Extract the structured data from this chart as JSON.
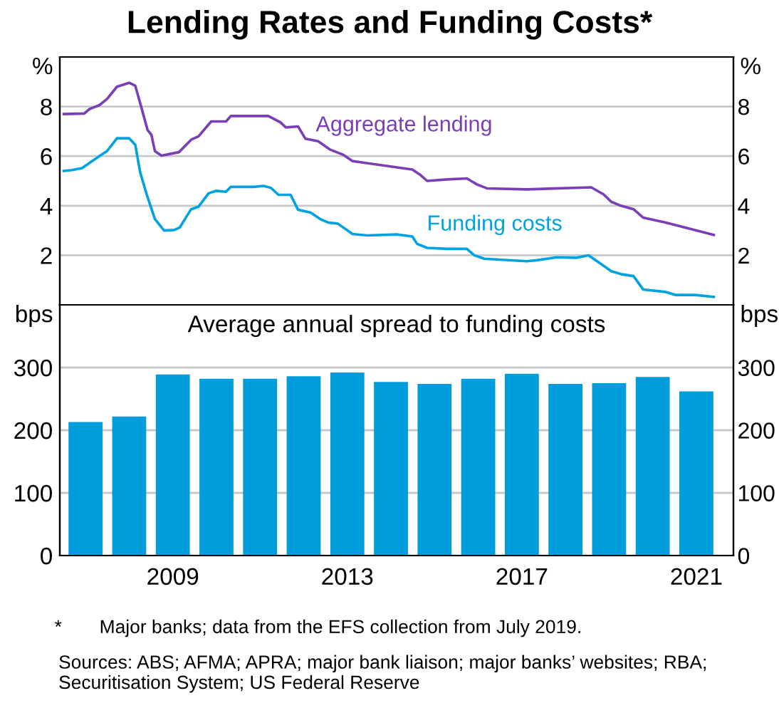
{
  "chart_data": [
    {
      "type": "line",
      "title": "Lending Rates and Funding Costs*",
      "ylabel": "%",
      "y2label": "%",
      "xlim": [
        2006.41,
        2021.85
      ],
      "ylim": [
        0,
        10
      ],
      "yticks": [
        2,
        4,
        6,
        8
      ],
      "y2lim": [
        0,
        10
      ],
      "y2ticks": [
        2,
        4,
        6,
        8
      ],
      "grid": "y",
      "legend": false,
      "tick_labels": "y",
      "marker": "none",
      "line_style": "solid",
      "series": [
        {
          "name": "Aggregate lending",
          "color": "#7b3fb5",
          "x": [
            2006.5,
            2006.97,
            2007.09,
            2007.32,
            2007.49,
            2007.72,
            2008.0,
            2008.14,
            2008.28,
            2008.42,
            2008.51,
            2008.59,
            2008.74,
            2009.14,
            2009.42,
            2009.59,
            2009.88,
            2010.22,
            2010.33,
            2011.19,
            2011.47,
            2011.59,
            2011.87,
            2012.04,
            2012.33,
            2012.61,
            2012.9,
            2013.12,
            2014.49,
            2014.66,
            2014.83,
            2015.29,
            2015.74,
            2015.97,
            2016.2,
            2017.11,
            2018.59,
            2018.87,
            2019.05,
            2019.27,
            2019.56,
            2019.78,
            2020.3,
            2021.4
          ],
          "values": [
            7.7,
            7.72,
            7.9,
            8.06,
            8.3,
            8.8,
            8.96,
            8.84,
            7.96,
            7.06,
            6.86,
            6.2,
            6.02,
            6.16,
            6.66,
            6.8,
            7.4,
            7.4,
            7.62,
            7.62,
            7.36,
            7.16,
            7.2,
            6.7,
            6.6,
            6.26,
            6.06,
            5.8,
            5.46,
            5.26,
            5.0,
            5.06,
            5.1,
            4.86,
            4.7,
            4.66,
            4.74,
            4.46,
            4.16,
            4.0,
            3.86,
            3.52,
            3.32,
            2.82
          ]
        },
        {
          "name": "Funding costs",
          "color": "#00a3e0",
          "x": [
            2006.5,
            2006.69,
            2006.92,
            2007.15,
            2007.37,
            2007.49,
            2007.72,
            2008.0,
            2008.14,
            2008.25,
            2008.4,
            2008.59,
            2008.8,
            2009.03,
            2009.16,
            2009.42,
            2009.59,
            2009.82,
            2009.99,
            2010.22,
            2010.33,
            2010.85,
            2011.08,
            2011.25,
            2011.42,
            2011.7,
            2011.87,
            2012.16,
            2012.38,
            2012.56,
            2012.78,
            2013.12,
            2013.46,
            2014.15,
            2014.49,
            2014.6,
            2014.83,
            2015.29,
            2015.74,
            2015.91,
            2016.14,
            2017.11,
            2017.34,
            2017.8,
            2018.25,
            2018.53,
            2018.76,
            2019.05,
            2019.27,
            2019.56,
            2019.78,
            2020.3,
            2020.52,
            2020.98,
            2021.4
          ],
          "values": [
            5.4,
            5.44,
            5.52,
            5.8,
            6.06,
            6.2,
            6.72,
            6.72,
            6.46,
            5.36,
            4.46,
            3.46,
            3.0,
            3.02,
            3.12,
            3.86,
            3.96,
            4.5,
            4.6,
            4.56,
            4.76,
            4.76,
            4.8,
            4.72,
            4.44,
            4.44,
            3.84,
            3.72,
            3.46,
            3.32,
            3.28,
            2.86,
            2.8,
            2.84,
            2.76,
            2.46,
            2.3,
            2.26,
            2.26,
            2.0,
            1.86,
            1.76,
            1.8,
            1.92,
            1.9,
            2.0,
            1.72,
            1.36,
            1.24,
            1.16,
            0.62,
            0.52,
            0.4,
            0.4,
            0.32
          ]
        }
      ]
    },
    {
      "type": "bar",
      "title": "Average annual spread to funding costs",
      "ylabel": "bps",
      "y2label": "bps",
      "x": [
        2007,
        2008,
        2009,
        2010,
        2011,
        2012,
        2013,
        2014,
        2015,
        2016,
        2017,
        2018,
        2019,
        2020,
        2021
      ],
      "values": [
        213,
        222,
        289,
        282,
        282,
        286,
        292,
        277,
        274,
        282,
        290,
        274,
        275,
        285,
        262
      ],
      "color": "#009ddc",
      "xlim": [
        2006.41,
        2021.85
      ],
      "xticks": [
        2009,
        2013,
        2017,
        2021
      ],
      "ylim": [
        0,
        400
      ],
      "yticks": [
        0,
        100,
        200,
        300
      ],
      "y2lim": [
        0,
        400
      ],
      "y2ticks": [
        0,
        100,
        200,
        300
      ],
      "grid": "y",
      "annotations": [
        "*  Major banks; data from the EFS collection from July 2019.",
        "Sources: ABS; AFMA; APRA; major bank liaison; major banks’ websites; RBA; Securitisation System; US Federal Reserve"
      ]
    }
  ]
}
